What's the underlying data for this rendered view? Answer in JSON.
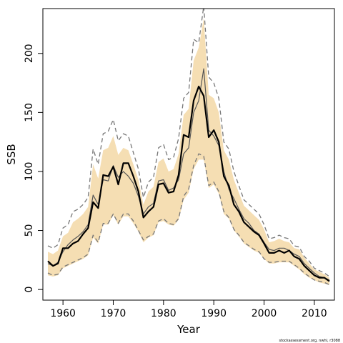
{
  "chart_data": {
    "type": "line",
    "xlabel": "Year",
    "ylabel": "SSB",
    "xlim": [
      1956,
      2014
    ],
    "ylim": [
      -9,
      238
    ],
    "x_ticks": [
      "1960",
      "1970",
      "1980",
      "1990",
      "2000",
      "2010"
    ],
    "y_ticks": [
      "0",
      "50",
      "100",
      "150",
      "200"
    ],
    "grid": false,
    "legend": "none",
    "colors": {
      "band": "#f5deb3",
      "estimate": "#000000",
      "secondary": "#555555",
      "bounds": "#777777"
    },
    "x": [
      1957,
      1958,
      1959,
      1960,
      1961,
      1962,
      1963,
      1964,
      1965,
      1966,
      1967,
      1968,
      1969,
      1970,
      1971,
      1972,
      1973,
      1974,
      1975,
      1976,
      1977,
      1978,
      1979,
      1980,
      1981,
      1982,
      1983,
      1984,
      1985,
      1986,
      1987,
      1988,
      1989,
      1990,
      1991,
      1992,
      1993,
      1994,
      1995,
      1996,
      1997,
      1998,
      1999,
      2000,
      2001,
      2002,
      2003,
      2004,
      2005,
      2006,
      2007,
      2008,
      2009,
      2010,
      2011,
      2012,
      2013
    ],
    "series": [
      {
        "values": [
          24,
          20,
          22,
          35,
          35,
          39,
          41,
          47,
          52,
          74,
          69,
          97,
          96,
          104,
          89,
          107,
          107,
          96,
          83,
          61,
          66,
          70,
          89,
          90,
          82,
          83,
          97,
          131,
          129,
          160,
          172,
          164,
          129,
          135,
          125,
          96,
          88,
          72,
          66,
          57,
          53,
          49,
          46,
          39,
          31,
          31,
          33,
          31,
          33,
          28,
          26,
          20,
          16,
          12,
          10,
          10,
          7
        ]
      },
      {
        "values": [
          22,
          20,
          23,
          32,
          38,
          42,
          45,
          49,
          55,
          80,
          72,
          93,
          92,
          105,
          95,
          100,
          96,
          90,
          79,
          64,
          70,
          73,
          92,
          93,
          84,
          86,
          93,
          115,
          120,
          150,
          160,
          187,
          135,
          130,
          122,
          100,
          85,
          77,
          68,
          60,
          56,
          50,
          47,
          40,
          34,
          33,
          35,
          35,
          33,
          30,
          28,
          22,
          18,
          14,
          11,
          10,
          8
        ]
      },
      {
        "values": [
          37,
          35,
          38,
          52,
          55,
          66,
          68,
          72,
          78,
          119,
          106,
          132,
          134,
          144,
          126,
          132,
          130,
          116,
          102,
          78,
          91,
          95,
          120,
          123,
          110,
          112,
          128,
          162,
          167,
          212,
          209,
          240,
          180,
          175,
          162,
          125,
          119,
          100,
          88,
          76,
          72,
          68,
          64,
          55,
          43,
          44,
          46,
          44,
          43,
          37,
          36,
          28,
          24,
          18,
          16,
          14,
          11
        ]
      },
      {
        "values": [
          14,
          12,
          13,
          19,
          21,
          23,
          25,
          27,
          30,
          46,
          40,
          56,
          56,
          64,
          56,
          64,
          64,
          58,
          50,
          42,
          45,
          47,
          58,
          60,
          56,
          55,
          60,
          79,
          85,
          105,
          115,
          113,
          88,
          91,
          83,
          66,
          61,
          51,
          46,
          40,
          37,
          34,
          32,
          26,
          23,
          23,
          24,
          24,
          24,
          21,
          18,
          14,
          11,
          8,
          7,
          6,
          4
        ]
      },
      {
        "values": [
          32,
          30,
          33,
          45,
          48,
          57,
          60,
          64,
          70,
          106,
          94,
          118,
          120,
          130,
          114,
          120,
          118,
          106,
          93,
          72,
          83,
          87,
          108,
          111,
          100,
          102,
          115,
          148,
          153,
          194,
          205,
          230,
          165,
          162,
          150,
          118,
          110,
          93,
          82,
          71,
          67,
          63,
          59,
          51,
          40,
          41,
          43,
          41,
          40,
          35,
          34,
          27,
          22,
          17,
          15,
          13,
          10
        ]
      },
      {
        "values": [
          12,
          11,
          12,
          18,
          20,
          22,
          24,
          26,
          29,
          44,
          39,
          55,
          55,
          63,
          55,
          62,
          62,
          56,
          49,
          40,
          44,
          46,
          57,
          58,
          55,
          54,
          59,
          76,
          82,
          102,
          110,
          110,
          86,
          89,
          81,
          64,
          60,
          50,
          45,
          39,
          36,
          33,
          31,
          26,
          22,
          22,
          23,
          23,
          23,
          20,
          17,
          13,
          10,
          8,
          6,
          5,
          4
        ]
      }
    ],
    "footer": "stockassessment.org, nwhl, r3088"
  }
}
